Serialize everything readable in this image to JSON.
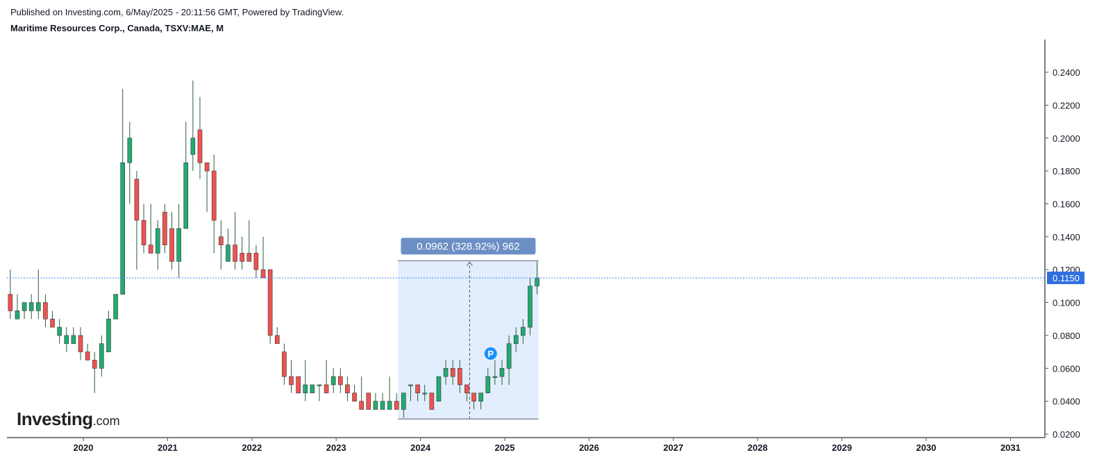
{
  "header": {
    "published": "Published on Investing.com, 6/May/2025 - 20:11:56 GMT, Powered by TradingView.",
    "symbol": "Maritime Resources Corp., Canada, TSXV:MAE, M"
  },
  "logo": {
    "main": "Investing",
    "suffix": ".com"
  },
  "colors": {
    "up": "#22ab72",
    "down": "#ef5350",
    "wick": "#2b5b3a",
    "axis": "#555555",
    "price_line": "#3b82f6",
    "price_label_bg": "#2f6fe0",
    "measure_fill": "#dbeafe",
    "measure_label_bg": "#6b8fc4"
  },
  "chart_data": {
    "type": "candlestick",
    "interval": "M",
    "xlabel": "",
    "ylabel": "",
    "ylim": [
      0.02,
      0.26
    ],
    "x_ticks": [
      "2020",
      "2021",
      "2022",
      "2023",
      "2024",
      "2025",
      "2026",
      "2027",
      "2028",
      "2029",
      "2030",
      "2031"
    ],
    "y_ticks": [
      "0.0200",
      "0.0400",
      "0.0600",
      "0.0800",
      "0.1000",
      "0.1200",
      "0.1400",
      "0.1600",
      "0.1800",
      "0.2000",
      "0.2200",
      "0.2400"
    ],
    "first_candle": "2019-03",
    "candles": [
      [
        0.105,
        0.12,
        0.09,
        0.095
      ],
      [
        0.09,
        0.105,
        0.09,
        0.095
      ],
      [
        0.095,
        0.1,
        0.09,
        0.1
      ],
      [
        0.095,
        0.105,
        0.09,
        0.1
      ],
      [
        0.095,
        0.12,
        0.09,
        0.1
      ],
      [
        0.1,
        0.105,
        0.085,
        0.09
      ],
      [
        0.09,
        0.095,
        0.085,
        0.085
      ],
      [
        0.08,
        0.09,
        0.075,
        0.085
      ],
      [
        0.075,
        0.085,
        0.07,
        0.08
      ],
      [
        0.075,
        0.085,
        0.075,
        0.08
      ],
      [
        0.08,
        0.085,
        0.065,
        0.07
      ],
      [
        0.07,
        0.075,
        0.065,
        0.065
      ],
      [
        0.065,
        0.07,
        0.045,
        0.06
      ],
      [
        0.06,
        0.08,
        0.055,
        0.075
      ],
      [
        0.07,
        0.095,
        0.07,
        0.09
      ],
      [
        0.09,
        0.105,
        0.09,
        0.105
      ],
      [
        0.105,
        0.23,
        0.105,
        0.185
      ],
      [
        0.185,
        0.21,
        0.16,
        0.2
      ],
      [
        0.175,
        0.18,
        0.12,
        0.15
      ],
      [
        0.15,
        0.16,
        0.13,
        0.135
      ],
      [
        0.135,
        0.16,
        0.13,
        0.13
      ],
      [
        0.13,
        0.15,
        0.12,
        0.145
      ],
      [
        0.155,
        0.16,
        0.13,
        0.135
      ],
      [
        0.145,
        0.155,
        0.12,
        0.125
      ],
      [
        0.125,
        0.16,
        0.115,
        0.145
      ],
      [
        0.145,
        0.21,
        0.145,
        0.185
      ],
      [
        0.19,
        0.235,
        0.18,
        0.2
      ],
      [
        0.205,
        0.225,
        0.175,
        0.185
      ],
      [
        0.185,
        0.185,
        0.155,
        0.18
      ],
      [
        0.18,
        0.19,
        0.13,
        0.15
      ],
      [
        0.14,
        0.15,
        0.12,
        0.135
      ],
      [
        0.125,
        0.145,
        0.125,
        0.135
      ],
      [
        0.135,
        0.155,
        0.12,
        0.125
      ],
      [
        0.13,
        0.14,
        0.12,
        0.125
      ],
      [
        0.13,
        0.15,
        0.125,
        0.125
      ],
      [
        0.13,
        0.135,
        0.115,
        0.12
      ],
      [
        0.12,
        0.14,
        0.115,
        0.115
      ],
      [
        0.12,
        0.12,
        0.075,
        0.08
      ],
      [
        0.08,
        0.085,
        0.075,
        0.075
      ],
      [
        0.07,
        0.075,
        0.05,
        0.055
      ],
      [
        0.055,
        0.065,
        0.045,
        0.05
      ],
      [
        0.055,
        0.055,
        0.045,
        0.045
      ],
      [
        0.045,
        0.065,
        0.04,
        0.05
      ],
      [
        0.045,
        0.05,
        0.045,
        0.05
      ],
      [
        0.05,
        0.05,
        0.04,
        0.05
      ],
      [
        0.05,
        0.065,
        0.045,
        0.045
      ],
      [
        0.05,
        0.06,
        0.045,
        0.055
      ],
      [
        0.055,
        0.06,
        0.045,
        0.05
      ],
      [
        0.05,
        0.055,
        0.04,
        0.045
      ],
      [
        0.045,
        0.05,
        0.04,
        0.04
      ],
      [
        0.04,
        0.055,
        0.035,
        0.035
      ],
      [
        0.045,
        0.045,
        0.035,
        0.035
      ],
      [
        0.035,
        0.045,
        0.035,
        0.04
      ],
      [
        0.035,
        0.045,
        0.035,
        0.04
      ],
      [
        0.035,
        0.055,
        0.035,
        0.04
      ],
      [
        0.04,
        0.045,
        0.035,
        0.035
      ],
      [
        0.035,
        0.045,
        0.03,
        0.045
      ],
      [
        0.05,
        0.05,
        0.04,
        0.05
      ],
      [
        0.05,
        0.05,
        0.04,
        0.045
      ],
      [
        0.045,
        0.05,
        0.04,
        0.045
      ],
      [
        0.045,
        0.045,
        0.035,
        0.035
      ],
      [
        0.04,
        0.055,
        0.04,
        0.055
      ],
      [
        0.055,
        0.065,
        0.05,
        0.06
      ],
      [
        0.06,
        0.065,
        0.05,
        0.055
      ],
      [
        0.06,
        0.065,
        0.045,
        0.05
      ],
      [
        0.05,
        0.05,
        0.04,
        0.045
      ],
      [
        0.045,
        0.045,
        0.035,
        0.04
      ],
      [
        0.04,
        0.045,
        0.035,
        0.045
      ],
      [
        0.045,
        0.06,
        0.045,
        0.055
      ],
      [
        0.055,
        0.065,
        0.05,
        0.055
      ],
      [
        0.055,
        0.065,
        0.05,
        0.06
      ],
      [
        0.06,
        0.08,
        0.05,
        0.075
      ],
      [
        0.075,
        0.085,
        0.07,
        0.08
      ],
      [
        0.08,
        0.09,
        0.075,
        0.085
      ],
      [
        0.085,
        0.115,
        0.08,
        0.11
      ],
      [
        0.11,
        0.125,
        0.105,
        0.115
      ]
    ],
    "last_price": {
      "value": 0.115,
      "label": "0.1150"
    },
    "measure": {
      "label": "0.0962 (328.92%) 962",
      "start_date": "2023-10",
      "end_date": "2025-06",
      "low": 0.0292,
      "high": 0.1254,
      "arrow_date": "2024-08"
    },
    "marker": {
      "label": "P",
      "date": "2024-11",
      "value": 0.069
    }
  }
}
